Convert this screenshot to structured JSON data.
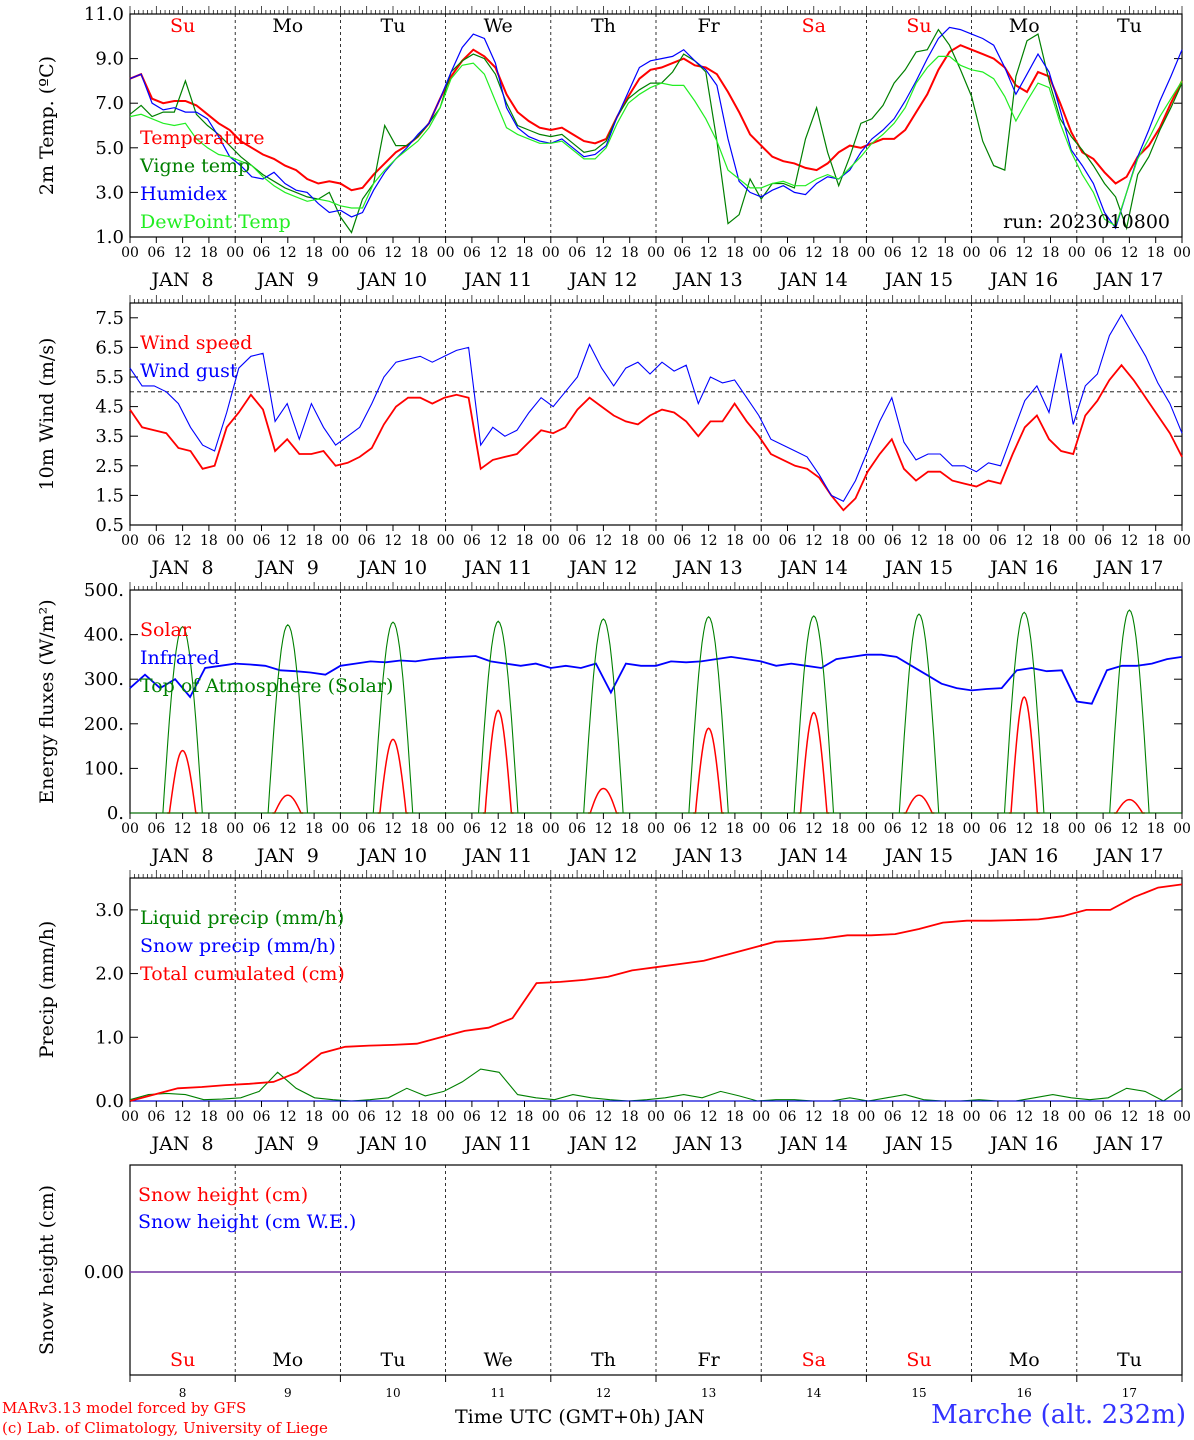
{
  "footer": {
    "credit_line1": "MARv3.13 model forced by GFS",
    "credit_line2": "(c) Lab. of Climatology, University of Liege",
    "x_title": "Time UTC (GMT+0h) JAN",
    "station": "Marche (alt. 232m)"
  },
  "colors": {
    "red": "#ff0000",
    "darkgreen": "#008000",
    "blue": "#0000ff",
    "lightgreen": "#22ee22",
    "purple": "#7030a0"
  },
  "chart_data": [
    {
      "type": "line",
      "ylabel": "2m Temp. (ºC)",
      "ylim": [
        1.0,
        11.0
      ],
      "yticks": [
        "1.0",
        "3.0",
        "5.0",
        "7.0",
        "9.0",
        "11.0"
      ],
      "hour_ticks": [
        "00",
        "06",
        "12",
        "18",
        "00",
        "06",
        "12",
        "18",
        "00",
        "06",
        "12",
        "18",
        "00",
        "06",
        "12",
        "18",
        "00",
        "06",
        "12",
        "18",
        "00",
        "06",
        "12",
        "18",
        "00",
        "06",
        "12",
        "18",
        "00",
        "06",
        "12",
        "18",
        "00",
        "06",
        "12",
        "18",
        "00",
        "06",
        "12",
        "18",
        "00"
      ],
      "day_labels": [
        "JAN  8",
        "JAN  9",
        "JAN 10",
        "JAN 11",
        "JAN 12",
        "JAN 13",
        "JAN 14",
        "JAN 15",
        "JAN 16",
        "JAN 17"
      ],
      "weekday_labels": [
        "Su",
        "Mo",
        "Tu",
        "We",
        "Th",
        "Fr",
        "Sa",
        "Su",
        "Mo",
        "Tu"
      ],
      "annotation": "run: 2023010800",
      "x_hours_step": 6,
      "series": [
        {
          "name": "Temperature",
          "color": "red",
          "values": [
            8.1,
            8.3,
            7.2,
            7.0,
            7.1,
            7.1,
            6.9,
            6.5,
            6.1,
            5.8,
            5.3,
            5.0,
            4.7,
            4.5,
            4.2,
            4.0,
            3.6,
            3.4,
            3.5,
            3.4,
            3.1,
            3.2,
            3.8,
            4.3,
            4.8,
            5.1,
            5.5,
            6.1,
            7.2,
            8.2,
            8.9,
            9.4,
            9.1,
            8.6,
            7.4,
            6.6,
            6.2,
            5.9,
            5.8,
            5.9,
            5.6,
            5.3,
            5.2,
            5.4,
            6.4,
            7.3,
            8.1,
            8.5,
            8.6,
            8.8,
            9.0,
            8.7,
            8.6,
            8.3,
            7.5,
            6.6,
            5.6,
            5.1,
            4.6,
            4.4,
            4.3,
            4.1,
            4.0,
            4.3,
            4.8,
            5.1,
            5.0,
            5.2,
            5.4,
            5.4,
            5.8,
            6.6,
            7.4,
            8.5,
            9.3,
            9.6,
            9.4,
            9.2,
            9.0,
            8.6,
            7.8,
            7.5,
            8.4,
            8.2,
            7.0,
            5.7,
            4.8,
            4.5,
            3.9,
            3.4,
            3.7,
            4.6,
            5.1,
            5.9,
            7.0,
            8.0
          ]
        },
        {
          "name": "Vigne temp",
          "color": "darkgreen",
          "values": [
            6.5,
            6.9,
            6.4,
            6.6,
            6.6,
            8.0,
            6.5,
            6.0,
            5.6,
            5.1,
            4.6,
            4.2,
            3.8,
            3.5,
            3.2,
            3.0,
            2.8,
            2.7,
            3.0,
            1.9,
            1.2,
            2.7,
            3.4,
            6.0,
            5.1,
            5.1,
            5.5,
            6.1,
            6.8,
            8.4,
            8.9,
            9.2,
            9.0,
            8.3,
            7.0,
            6.0,
            5.8,
            5.6,
            5.5,
            5.6,
            5.2,
            4.8,
            4.9,
            5.3,
            6.4,
            7.2,
            7.6,
            7.9,
            7.9,
            8.4,
            9.2,
            8.9,
            8.4,
            5.3,
            1.6,
            2.0,
            3.6,
            2.7,
            3.4,
            3.4,
            3.2,
            5.4,
            6.8,
            4.8,
            3.3,
            4.6,
            6.1,
            6.3,
            6.9,
            7.9,
            8.5,
            9.3,
            9.4,
            10.3,
            9.6,
            8.5,
            7.3,
            5.3,
            4.2,
            4.0,
            8.2,
            9.8,
            10.1,
            8.0,
            6.3,
            5.5,
            4.9,
            4.2,
            3.4,
            2.8,
            1.4,
            3.8,
            4.6,
            5.8,
            6.8,
            7.9
          ]
        },
        {
          "name": "Humidex",
          "color": "blue",
          "values": [
            8.1,
            8.3,
            7.0,
            6.7,
            6.8,
            6.6,
            6.6,
            6.3,
            5.5,
            4.6,
            4.2,
            3.7,
            3.6,
            3.9,
            3.4,
            3.1,
            3.0,
            2.5,
            2.1,
            2.2,
            1.9,
            2.1,
            3.1,
            3.9,
            4.5,
            5.0,
            5.6,
            6.1,
            7.2,
            8.4,
            9.5,
            10.1,
            9.9,
            8.8,
            6.8,
            5.9,
            5.5,
            5.3,
            5.2,
            5.4,
            5.0,
            4.6,
            4.7,
            5.1,
            6.4,
            7.5,
            8.6,
            8.9,
            9.0,
            9.1,
            9.4,
            8.9,
            8.5,
            7.8,
            5.4,
            3.5,
            3.0,
            2.8,
            3.1,
            3.3,
            3.0,
            2.9,
            3.4,
            3.7,
            3.6,
            4.0,
            4.8,
            5.4,
            5.8,
            6.3,
            7.1,
            8.0,
            9.0,
            9.9,
            10.4,
            10.3,
            10.1,
            9.9,
            9.6,
            8.6,
            7.4,
            8.3,
            9.2,
            8.4,
            6.7,
            4.9,
            4.2,
            3.4,
            2.1,
            1.4,
            3.0,
            4.6,
            5.8,
            7.1,
            8.2,
            9.4
          ]
        },
        {
          "name": "DewPoint Temp",
          "color": "lightgreen",
          "values": [
            6.4,
            6.5,
            6.3,
            6.1,
            6.0,
            6.1,
            5.4,
            5.0,
            4.7,
            4.6,
            4.4,
            4.2,
            3.7,
            3.3,
            3.0,
            2.8,
            2.6,
            2.7,
            2.6,
            2.4,
            2.3,
            2.3,
            3.4,
            4.0,
            4.5,
            4.9,
            5.3,
            5.9,
            6.8,
            8.1,
            8.7,
            8.8,
            8.3,
            7.1,
            5.9,
            5.6,
            5.4,
            5.2,
            5.2,
            5.3,
            4.9,
            4.5,
            4.5,
            5.0,
            6.1,
            7.0,
            7.4,
            7.7,
            7.9,
            7.8,
            7.8,
            7.1,
            6.3,
            5.3,
            4.0,
            3.6,
            3.2,
            3.2,
            3.4,
            3.5,
            3.3,
            3.3,
            3.6,
            3.8,
            3.6,
            4.1,
            4.6,
            5.2,
            5.6,
            6.1,
            6.8,
            7.9,
            8.6,
            9.1,
            9.1,
            8.7,
            8.5,
            8.4,
            8.1,
            7.3,
            6.2,
            7.1,
            7.9,
            7.7,
            6.1,
            4.8,
            3.8,
            3.0,
            1.8,
            1.5,
            3.0,
            4.5,
            5.4,
            6.4,
            7.2,
            8.0
          ]
        }
      ]
    },
    {
      "type": "line",
      "ylabel": "10m Wind (m/s)",
      "ylim": [
        0.5,
        8.0
      ],
      "yticks": [
        "0.5",
        "1.5",
        "2.5",
        "3.5",
        "4.5",
        "5.5",
        "6.5",
        "7.5"
      ],
      "reference_line": 5.0,
      "x_hours_step": 6,
      "series": [
        {
          "name": "Wind speed",
          "color": "red",
          "values": [
            4.4,
            3.8,
            3.7,
            3.6,
            3.1,
            3.0,
            2.4,
            2.5,
            3.8,
            4.3,
            4.9,
            4.4,
            3.0,
            3.4,
            2.9,
            2.9,
            3.0,
            2.5,
            2.6,
            2.8,
            3.1,
            3.9,
            4.5,
            4.8,
            4.8,
            4.6,
            4.8,
            4.9,
            4.8,
            2.4,
            2.7,
            2.8,
            2.9,
            3.3,
            3.7,
            3.6,
            3.8,
            4.4,
            4.8,
            4.5,
            4.2,
            4.0,
            3.9,
            4.2,
            4.4,
            4.3,
            4.0,
            3.5,
            4.0,
            4.0,
            4.6,
            4.0,
            3.5,
            2.9,
            2.7,
            2.5,
            2.4,
            2.1,
            1.5,
            1.0,
            1.4,
            2.3,
            2.9,
            3.4,
            2.4,
            2.0,
            2.3,
            2.3,
            2.0,
            1.9,
            1.8,
            2.0,
            1.9,
            2.9,
            3.8,
            4.2,
            3.4,
            3.0,
            2.9,
            4.2,
            4.7,
            5.4,
            5.9,
            5.4,
            4.8,
            4.2,
            3.6,
            2.8
          ]
        },
        {
          "name": "Wind gust",
          "color": "blue",
          "values": [
            5.8,
            5.2,
            5.2,
            5.0,
            4.6,
            3.8,
            3.2,
            3.0,
            4.3,
            5.8,
            6.2,
            6.3,
            4.0,
            4.6,
            3.4,
            4.6,
            3.8,
            3.2,
            3.5,
            3.8,
            4.6,
            5.5,
            6.0,
            6.1,
            6.2,
            6.0,
            6.2,
            6.4,
            6.5,
            3.2,
            3.8,
            3.5,
            3.7,
            4.3,
            4.8,
            4.5,
            5.0,
            5.5,
            6.6,
            5.8,
            5.2,
            5.8,
            6.0,
            5.6,
            6.0,
            5.7,
            5.9,
            4.6,
            5.5,
            5.3,
            5.4,
            4.8,
            4.2,
            3.4,
            3.2,
            3.0,
            2.8,
            2.2,
            1.5,
            1.3,
            2.0,
            3.0,
            4.0,
            4.8,
            3.3,
            2.7,
            2.9,
            2.9,
            2.5,
            2.5,
            2.3,
            2.6,
            2.5,
            3.6,
            4.7,
            5.2,
            4.3,
            6.3,
            3.9,
            5.2,
            5.6,
            6.9,
            7.6,
            6.9,
            6.2,
            5.3,
            4.6,
            3.6
          ]
        }
      ]
    },
    {
      "type": "line",
      "ylabel": "Energy fluxes (W/m²)",
      "ylim": [
        0,
        500
      ],
      "yticks": [
        "0.",
        "100.",
        "200.",
        "300.",
        "400.",
        "500."
      ],
      "x_hours_step": 6,
      "series": [
        {
          "name": "Solar",
          "color": "red",
          "peaks": [
            [
              12,
              140
            ],
            [
              36,
              40
            ],
            [
              60,
              165
            ],
            [
              84,
              230
            ],
            [
              108,
              55
            ],
            [
              132,
              190
            ],
            [
              156,
              225
            ],
            [
              180,
              40
            ],
            [
              204,
              260
            ],
            [
              228,
              30
            ]
          ]
        },
        {
          "name": "Infrared",
          "color": "blue",
          "values": [
            280,
            310,
            280,
            300,
            260,
            325,
            330,
            335,
            333,
            330,
            320,
            318,
            315,
            310,
            330,
            335,
            340,
            338,
            342,
            340,
            345,
            348,
            350,
            352,
            340,
            335,
            330,
            335,
            325,
            330,
            325,
            335,
            270,
            335,
            330,
            330,
            340,
            338,
            340,
            345,
            350,
            345,
            340,
            330,
            335,
            330,
            325,
            345,
            350,
            355,
            355,
            350,
            330,
            310,
            290,
            280,
            275,
            278,
            280,
            320,
            325,
            318,
            320,
            250,
            245,
            320,
            330,
            330,
            335,
            345,
            350
          ]
        },
        {
          "name": "Top of Atmosphere (Solar)",
          "color": "darkgreen",
          "peaks": [
            [
              12,
              418
            ],
            [
              36,
              422
            ],
            [
              60,
              428
            ],
            [
              84,
              430
            ],
            [
              108,
              435
            ],
            [
              132,
              440
            ],
            [
              156,
              442
            ],
            [
              180,
              446
            ],
            [
              204,
              450
            ],
            [
              228,
              455
            ]
          ]
        }
      ]
    },
    {
      "type": "line",
      "ylabel": "Precip (mm/h)",
      "ylim": [
        0.0,
        3.5
      ],
      "yticks": [
        "0.0",
        "1.0",
        "2.0",
        "3.0"
      ],
      "x_hours_step": 6,
      "series": [
        {
          "name": "Liquid precip (mm/h)",
          "color": "darkgreen",
          "values": [
            0.02,
            0.1,
            0.12,
            0.1,
            0.02,
            0.03,
            0.05,
            0.15,
            0.45,
            0.2,
            0.05,
            0.02,
            0.0,
            0.02,
            0.05,
            0.2,
            0.08,
            0.15,
            0.3,
            0.5,
            0.45,
            0.1,
            0.05,
            0.02,
            0.1,
            0.05,
            0.02,
            0.0,
            0.02,
            0.05,
            0.1,
            0.05,
            0.15,
            0.08,
            0.0,
            0.02,
            0.02,
            0.0,
            0.0,
            0.05,
            0.0,
            0.05,
            0.1,
            0.02,
            0.0,
            0.0,
            0.02,
            0.0,
            0.0,
            0.05,
            0.1,
            0.05,
            0.02,
            0.05,
            0.2,
            0.15,
            0.0,
            0.2
          ]
        },
        {
          "name": "Snow precip (mm/h)",
          "color": "blue",
          "values": [
            0,
            0,
            0,
            0,
            0,
            0,
            0,
            0,
            0,
            0
          ]
        },
        {
          "name": "Total cumulated (cm)",
          "color": "red",
          "values": [
            0.0,
            0.1,
            0.2,
            0.22,
            0.25,
            0.27,
            0.3,
            0.45,
            0.75,
            0.85,
            0.87,
            0.88,
            0.9,
            1.0,
            1.1,
            1.15,
            1.3,
            1.85,
            1.87,
            1.9,
            1.95,
            2.05,
            2.1,
            2.15,
            2.2,
            2.3,
            2.4,
            2.5,
            2.52,
            2.55,
            2.6,
            2.6,
            2.62,
            2.7,
            2.8,
            2.83,
            2.83,
            2.84,
            2.85,
            2.9,
            3.0,
            3.0,
            3.2,
            3.35,
            3.4
          ]
        }
      ]
    },
    {
      "type": "line",
      "ylabel": "Snow height (cm)",
      "yticks": [
        "0.00"
      ],
      "x_labels": [
        "8",
        "9",
        "10",
        "11",
        "12",
        "13",
        "14",
        "15",
        "16",
        "17"
      ],
      "weekday_labels": [
        "Su",
        "Mo",
        "Tu",
        "We",
        "Th",
        "Fr",
        "Sa",
        "Su",
        "Mo",
        "Tu"
      ],
      "series": [
        {
          "name": "Snow height (cm)",
          "color": "red",
          "values": [
            0.0,
            0.0
          ]
        },
        {
          "name": "Snow height (cm W.E.)",
          "color": "blue",
          "values": [
            0.0,
            0.0
          ]
        }
      ]
    }
  ]
}
